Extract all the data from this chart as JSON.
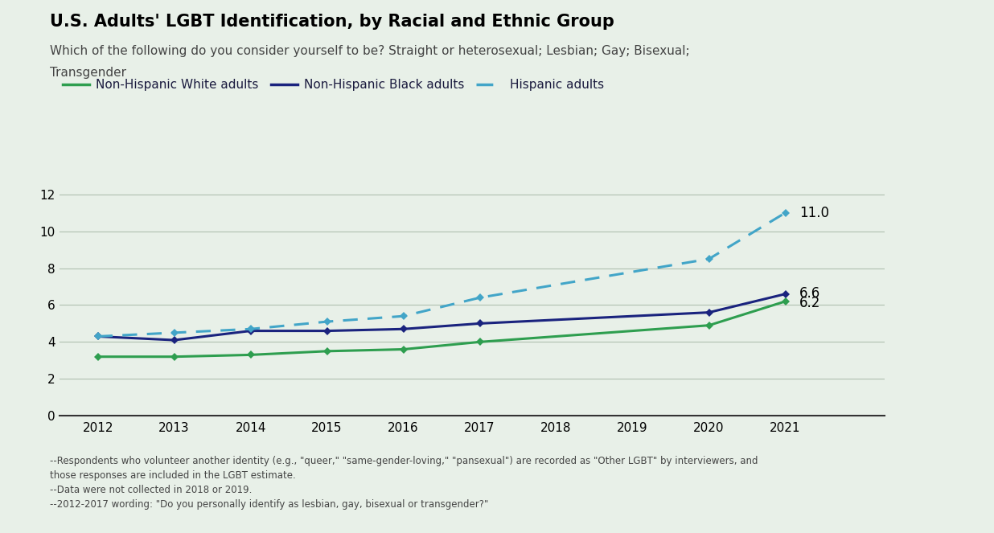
{
  "title": "U.S. Adults' LGBT Identification, by Racial and Ethnic Group",
  "subtitle_line1": "Which of the following do you consider yourself to be? Straight or heterosexual; Lesbian; Gay; Bisexual;",
  "subtitle_line2": "Transgender",
  "background_color": "#e8f0e8",
  "plot_bg_color": "#e8f0e8",
  "white_data": {
    "years": [
      2012,
      2013,
      2014,
      2015,
      2016,
      2017,
      2020,
      2021
    ],
    "values": [
      3.2,
      3.2,
      3.3,
      3.5,
      3.6,
      4.0,
      4.9,
      6.2
    ],
    "color": "#2e9e4f",
    "label": "Non-Hispanic White adults",
    "linestyle": "solid",
    "linewidth": 2.2
  },
  "black_data": {
    "years": [
      2012,
      2013,
      2014,
      2015,
      2016,
      2017,
      2020,
      2021
    ],
    "values": [
      4.3,
      4.1,
      4.6,
      4.6,
      4.7,
      5.0,
      5.6,
      6.6
    ],
    "color": "#1a237e",
    "label": "Non-Hispanic Black adults",
    "linestyle": "solid",
    "linewidth": 2.2
  },
  "hispanic_data": {
    "years": [
      2012,
      2013,
      2014,
      2015,
      2016,
      2017,
      2020,
      2021
    ],
    "values": [
      4.3,
      4.5,
      4.7,
      5.1,
      5.4,
      6.4,
      8.5,
      11.0
    ],
    "color": "#42a5c8",
    "label": "Hispanic adults",
    "linestyle": "dashed",
    "linewidth": 2.2
  },
  "ylim": [
    0,
    13
  ],
  "yticks": [
    0,
    2,
    4,
    6,
    8,
    10,
    12
  ],
  "xlim": [
    2011.5,
    2022.3
  ],
  "xticks": [
    2012,
    2013,
    2014,
    2015,
    2016,
    2017,
    2018,
    2019,
    2020,
    2021
  ],
  "footnote_lines": [
    "--Respondents who volunteer another identity (e.g., \"queer,\" \"same-gender-loving,\" \"pansexual\") are recorded as \"Other LGBT\" by interviewers, and",
    "those responses are included in the LGBT estimate.",
    "--Data were not collected in 2018 or 2019.",
    "--2012-2017 wording: \"Do you personally identify as lesbian, gay, bisexual or transgender?\""
  ],
  "end_labels": {
    "hispanic": "11.0",
    "black": "6.6",
    "white": "6.2"
  }
}
